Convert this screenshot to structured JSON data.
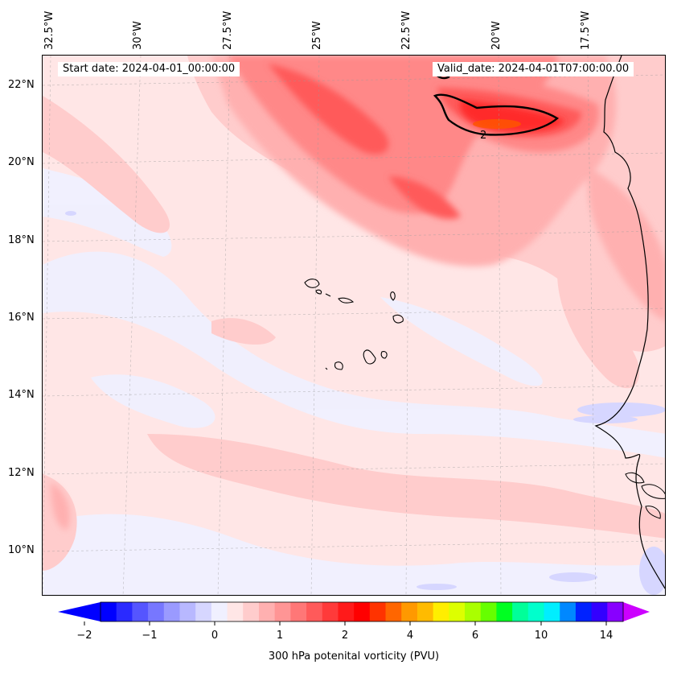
{
  "header": {
    "start_date": "Start date: 2024-04-01_00:00:00",
    "valid_date": "Valid_date: 2024-04-01T07:00:00.00"
  },
  "axes": {
    "lon_labels": [
      "32.5°W",
      "30°W",
      "27.5°W",
      "25°W",
      "22.5°W",
      "20°W",
      "17.5°W"
    ],
    "lat_labels": [
      "22°N",
      "20°N",
      "18°N",
      "16°N",
      "14°N",
      "12°N",
      "10°N"
    ]
  },
  "contour": {
    "label": "2"
  },
  "colorbar": {
    "title": "300 hPa potenital vorticity (PVU)",
    "tick_labels": [
      "−2",
      "−1",
      "0",
      "1",
      "2",
      "4",
      "6",
      "10",
      "14"
    ],
    "colors": [
      "#0000ff",
      "#2a2aff",
      "#5555ff",
      "#7777ff",
      "#9a9aff",
      "#b8b8ff",
      "#d6d6ff",
      "#f0f0ff",
      "#ffe6e6",
      "#ffcccc",
      "#ffb0b0",
      "#ff9595",
      "#ff7777",
      "#ff5a5a",
      "#ff3a3a",
      "#ff1a1a",
      "#ff0000",
      "#ff3300",
      "#ff6600",
      "#ff9900",
      "#ffbb00",
      "#ffee00",
      "#ddff00",
      "#aaff00",
      "#66ff00",
      "#00ff22",
      "#00ff99",
      "#00ffcc",
      "#00eeff",
      "#0088ff",
      "#0022ff",
      "#3300ff",
      "#8800ff"
    ],
    "arrow_low": "#0000ff",
    "arrow_high": "#cc00ff"
  },
  "field_colors": {
    "bg": "#ffe6e6",
    "lightblue": "#f0f0ff",
    "blue": "#d6d6ff",
    "pink1": "#ffcccc",
    "pink2": "#ffb0b0",
    "red1": "#ff8888",
    "red2": "#ff5a5a",
    "red3": "#ff2a2a",
    "orange": "#ff5500"
  }
}
